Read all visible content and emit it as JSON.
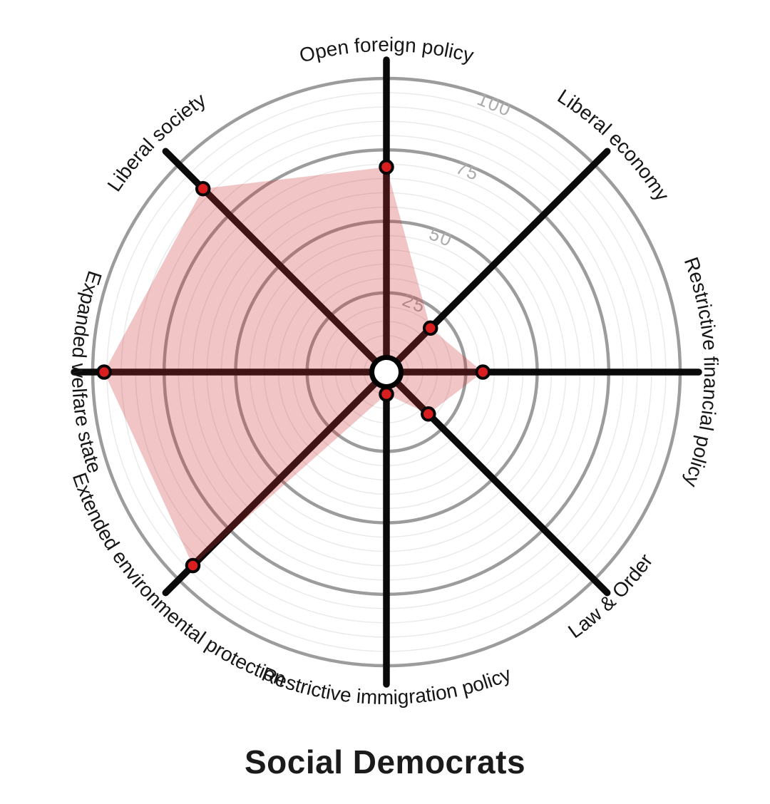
{
  "title": "Social Democrats",
  "chart_data": {
    "type": "radar",
    "title": "Social Democrats",
    "axis_range": [
      0,
      100
    ],
    "scale_ticks": [
      25,
      50,
      75,
      100
    ],
    "grid_minor_step": 5,
    "grid_major_step": 25,
    "grid": "on",
    "legend": "none",
    "categories": [
      "Open foreign policy",
      "Liberal economy",
      "Restrictive financial policy",
      "Law & Order",
      "Restrictive immigration policy",
      "Extended environmental protection",
      "Expanded welfare state",
      "Liberal society"
    ],
    "series": [
      {
        "name": "Social Democrats",
        "values": [
          69,
          19,
          31,
          18,
          5,
          93,
          96,
          88
        ]
      }
    ],
    "colors": {
      "polygon_fill": "rgba(205,45,45,0.28)",
      "point_fill": "#d81e1e",
      "point_stroke": "#060606",
      "axis": "#0a0a0a",
      "ring_major": "#9c9c9c",
      "ring_minor": "#e9e9e9",
      "tick_label": "#ababab",
      "axis_label": "#161616",
      "hub_fill": "#ffffff",
      "hub_stroke": "#000000",
      "title": "#1b1b1b"
    }
  }
}
